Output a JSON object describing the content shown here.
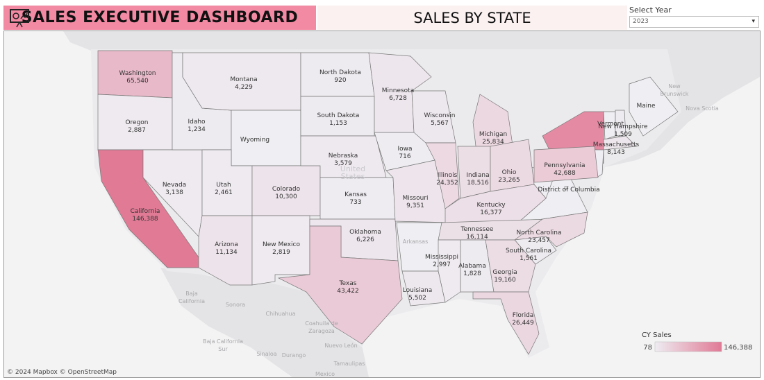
{
  "header": {
    "title": "SALES EXECUTIVE DASHBOARD",
    "subtitle": "SALES BY STATE"
  },
  "filter": {
    "label": "Select Year",
    "value": "2023"
  },
  "map": {
    "states": [
      {
        "name": "Washington",
        "sales": 65540,
        "sales_label": "65,540"
      },
      {
        "name": "Oregon",
        "sales": 2887,
        "sales_label": "2,887"
      },
      {
        "name": "California",
        "sales": 146388,
        "sales_label": "146,388"
      },
      {
        "name": "Nevada",
        "sales": 3138,
        "sales_label": "3,138"
      },
      {
        "name": "Idaho",
        "sales": 1234,
        "sales_label": "1,234"
      },
      {
        "name": "Montana",
        "sales": 4229,
        "sales_label": "4,229"
      },
      {
        "name": "Wyoming"
      },
      {
        "name": "Utah",
        "sales": 2461,
        "sales_label": "2,461"
      },
      {
        "name": "Colorado",
        "sales": 10300,
        "sales_label": "10,300"
      },
      {
        "name": "Arizona",
        "sales": 11134,
        "sales_label": "11,134"
      },
      {
        "name": "New Mexico",
        "sales": 2819,
        "sales_label": "2,819"
      },
      {
        "name": "North Dakota",
        "sales": 920
      },
      {
        "name": "South Dakota",
        "sales": 1153,
        "sales_label": "1,153"
      },
      {
        "name": "Nebraska",
        "sales": 3579,
        "sales_label": "3,579"
      },
      {
        "name": "Kansas",
        "sales": 733
      },
      {
        "name": "Oklahoma",
        "sales": 6226,
        "sales_label": "6,226"
      },
      {
        "name": "Texas",
        "sales": 43422,
        "sales_label": "43,422"
      },
      {
        "name": "Minnesota",
        "sales": 6728,
        "sales_label": "6,728"
      },
      {
        "name": "Iowa",
        "sales": 716
      },
      {
        "name": "Missouri",
        "sales": 9351,
        "sales_label": "9,351"
      },
      {
        "name": "Wisconsin",
        "sales": 5567,
        "sales_label": "5,567"
      },
      {
        "name": "Illinois",
        "sales": 24352,
        "sales_label": "24,352"
      },
      {
        "name": "Michigan",
        "sales": 25834,
        "sales_label": "25,834"
      },
      {
        "name": "Indiana",
        "sales": 18516,
        "sales_label": "18,516"
      },
      {
        "name": "Ohio",
        "sales": 23265,
        "sales_label": "23,265"
      },
      {
        "name": "Kentucky",
        "sales": 16377,
        "sales_label": "16,377"
      },
      {
        "name": "Tennessee",
        "sales": 16114,
        "sales_label": "16,114"
      },
      {
        "name": "North Carolina",
        "sales": 23457,
        "sales_label": "23,457"
      },
      {
        "name": "South Carolina",
        "sales": 1561,
        "sales_label": "1,561"
      },
      {
        "name": "Mississippi",
        "sales": 2997,
        "sales_label": "2,997"
      },
      {
        "name": "Alabama",
        "sales": 1828,
        "sales_label": "1,828"
      },
      {
        "name": "Georgia",
        "sales": 19160,
        "sales_label": "19,160"
      },
      {
        "name": "Louisiana",
        "sales": 5502,
        "sales_label": "5,502"
      },
      {
        "name": "Florida",
        "sales": 26449,
        "sales_label": "26,449"
      },
      {
        "name": "Pennsylvania",
        "sales": 42688,
        "sales_label": "42,688"
      },
      {
        "name": "District of Columbia"
      },
      {
        "name": "Vermont"
      },
      {
        "name": "New Hampshire",
        "sales": 1509,
        "sales_label": "1,509"
      },
      {
        "name": "Massachusetts",
        "sales": 8143,
        "sales_label": "8,143"
      },
      {
        "name": "Maine"
      }
    ],
    "place_labels": [
      [
        "United",
        "States"
      ],
      [
        "New",
        "Brunswick"
      ],
      [
        "Nova Scotia"
      ],
      [
        "Baja",
        "California"
      ],
      [
        "Sonora"
      ],
      [
        "Chihuahua"
      ],
      [
        "Coahuila de",
        "Zaragoza"
      ],
      [
        "Baja California",
        "Sur"
      ],
      [
        "Sinaloa"
      ],
      [
        "Durango"
      ],
      [
        "Nuevo León"
      ],
      [
        "Tamaulipas"
      ],
      [
        "Mexico"
      ],
      [
        "Arkansas"
      ]
    ],
    "legend": {
      "title": "CY Sales",
      "min": 78,
      "max": 146388,
      "max_label": "146,388"
    },
    "attribution": "© 2024 Mapbox © OpenStreetMap"
  }
}
